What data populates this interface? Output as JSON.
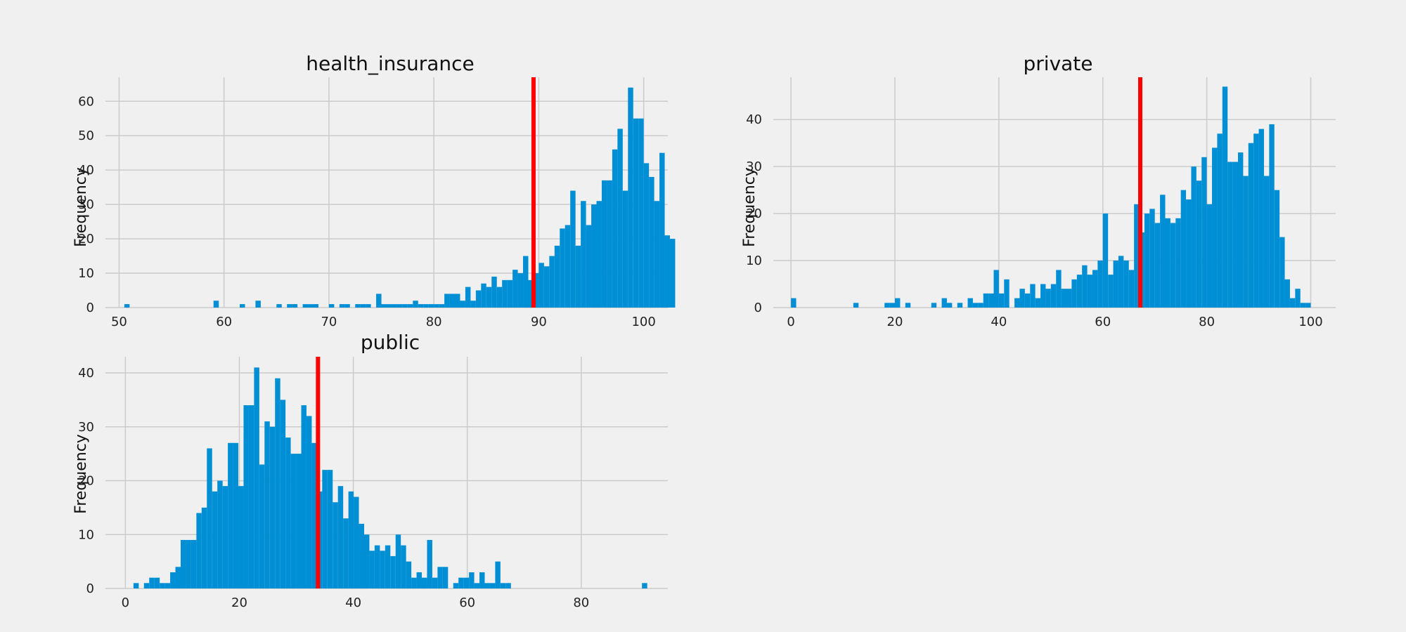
{
  "colors": {
    "bar": "#008fd5",
    "mean_line": "#ff0000",
    "grid": "#cbcbcb",
    "background": "#f0f0f0"
  },
  "chart_data": [
    {
      "type": "bar",
      "subtype": "histogram",
      "title": "health_insurance",
      "xlabel": "",
      "ylabel": "Frequency",
      "xlim": [
        48.7,
        102.3
      ],
      "ylim": [
        0,
        67
      ],
      "xticks": [
        50,
        60,
        70,
        80,
        90,
        100
      ],
      "yticks": [
        0,
        10,
        20,
        30,
        40,
        50,
        60
      ],
      "bin_start": 50.5,
      "bin_width": 0.5,
      "values": [
        1,
        0,
        0,
        0,
        0,
        0,
        0,
        0,
        0,
        0,
        0,
        0,
        0,
        0,
        0,
        0,
        0,
        2,
        0,
        0,
        0,
        0,
        1,
        0,
        0,
        2,
        0,
        0,
        0,
        1,
        0,
        1,
        1,
        0,
        1,
        1,
        1,
        0,
        0,
        1,
        0,
        1,
        1,
        0,
        1,
        1,
        1,
        0,
        4,
        1,
        1,
        1,
        1,
        1,
        1,
        2,
        1,
        1,
        1,
        1,
        1,
        4,
        4,
        4,
        2,
        6,
        2,
        5,
        7,
        6,
        9,
        6,
        8,
        8,
        11,
        10,
        15,
        8,
        10,
        13,
        12,
        15,
        18,
        23,
        24,
        34,
        18,
        31,
        24,
        30,
        31,
        37,
        37,
        46,
        52,
        34,
        64,
        55,
        55,
        42,
        38,
        31,
        45,
        21,
        20
      ],
      "mean": 89.5,
      "grid": true
    },
    {
      "type": "bar",
      "subtype": "histogram",
      "title": "private",
      "xlabel": "",
      "ylabel": "Frequency",
      "xlim": [
        -3.4,
        104.8
      ],
      "ylim": [
        0,
        49
      ],
      "xticks": [
        0,
        20,
        40,
        60,
        80,
        100
      ],
      "yticks": [
        0,
        10,
        20,
        30,
        40
      ],
      "bin_start": 0,
      "bin_width": 1,
      "values": [
        2,
        0,
        0,
        0,
        0,
        0,
        0,
        0,
        0,
        0,
        0,
        0,
        1,
        0,
        0,
        0,
        0,
        0,
        1,
        1,
        2,
        0,
        1,
        0,
        0,
        0,
        0,
        1,
        0,
        2,
        1,
        0,
        1,
        0,
        2,
        1,
        1,
        3,
        3,
        8,
        3,
        6,
        0,
        2,
        4,
        3,
        5,
        2,
        5,
        4,
        5,
        8,
        4,
        4,
        6,
        7,
        9,
        7,
        8,
        10,
        20,
        7,
        10,
        11,
        10,
        8,
        22,
        16,
        20,
        21,
        18,
        24,
        19,
        18,
        19,
        25,
        23,
        30,
        27,
        32,
        22,
        34,
        37,
        47,
        31,
        31,
        33,
        28,
        35,
        37,
        38,
        28,
        39,
        25,
        15,
        6,
        2,
        4,
        1,
        1
      ],
      "mean": 67.2,
      "grid": true
    },
    {
      "type": "bar",
      "subtype": "histogram",
      "title": "public",
      "xlabel": "",
      "ylabel": "Frequency",
      "xlim": [
        -3.5,
        95.2
      ],
      "ylim": [
        0,
        43
      ],
      "xticks": [
        0,
        20,
        40,
        60,
        80
      ],
      "yticks": [
        0,
        10,
        20,
        30,
        40
      ],
      "bin_start": 0.5,
      "bin_width": 0.92,
      "values": [
        0,
        1,
        0,
        1,
        2,
        2,
        1,
        1,
        3,
        4,
        9,
        9,
        9,
        14,
        15,
        26,
        18,
        20,
        19,
        27,
        27,
        19,
        34,
        34,
        41,
        23,
        31,
        30,
        39,
        35,
        28,
        25,
        25,
        34,
        32,
        27,
        18,
        22,
        22,
        16,
        19,
        13,
        18,
        17,
        12,
        10,
        7,
        8,
        7,
        8,
        6,
        10,
        8,
        5,
        2,
        3,
        2,
        9,
        2,
        4,
        4,
        0,
        1,
        2,
        2,
        3,
        1,
        3,
        1,
        1,
        5,
        1,
        1,
        0,
        0,
        0,
        0,
        0,
        0,
        0,
        0,
        0,
        0,
        0,
        0,
        0,
        0,
        0,
        0,
        0,
        0,
        0,
        0,
        0,
        0,
        0,
        0,
        0,
        1
      ],
      "mean": 33.8,
      "grid": true
    }
  ]
}
